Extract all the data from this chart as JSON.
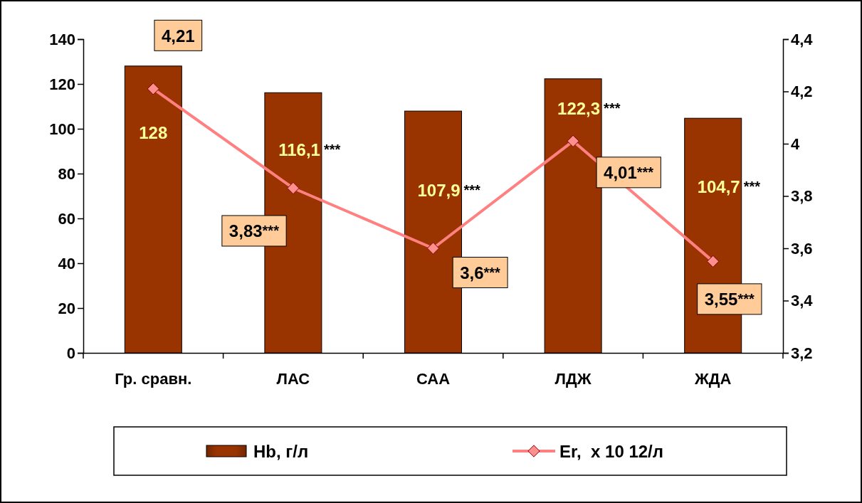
{
  "chart_data": {
    "type": "bar",
    "categories": [
      "Гр. сравн.",
      "ЛАС",
      "САА",
      "ЛДЖ",
      "ЖДА"
    ],
    "series": [
      {
        "name": "Hb, г/л",
        "color": "#993300",
        "values": [
          128,
          116.1,
          107.9,
          122.3,
          104.7
        ],
        "value_labels": [
          "128",
          "116,1***",
          "107,9***",
          "122,3***",
          "104,7***"
        ]
      },
      {
        "name": "Er,  x 10 12/л",
        "type": "line",
        "axis": "y2",
        "color": "#ff8080",
        "values": [
          4.21,
          3.83,
          3.6,
          4.01,
          3.55
        ],
        "value_labels": [
          "4,21",
          "3,83***",
          "3,6***",
          "4,01***",
          "3,55***"
        ]
      }
    ],
    "ylim": [
      0,
      140
    ],
    "yticks": [
      0,
      20,
      40,
      60,
      80,
      100,
      120,
      140
    ],
    "y2lim": [
      3.2,
      4.4
    ],
    "y2ticks": [
      {
        "value": 3.2,
        "label": "3,2"
      },
      {
        "value": 3.4,
        "label": "3,4"
      },
      {
        "value": 3.6,
        "label": "3,6"
      },
      {
        "value": 3.8,
        "label": "3,8"
      },
      4,
      {
        "value": 4.2,
        "label": "4,2"
      },
      {
        "value": 4.4,
        "label": "4,4"
      }
    ],
    "marker": "diamond",
    "line_style": "solid",
    "grid": false,
    "legend": "bottom"
  }
}
